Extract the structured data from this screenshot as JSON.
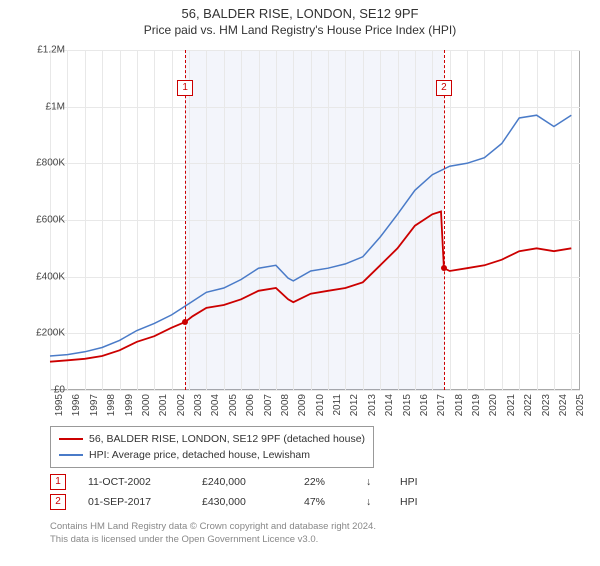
{
  "title": "56, BALDER RISE, LONDON, SE12 9PF",
  "subtitle": "Price paid vs. HM Land Registry's House Price Index (HPI)",
  "chart": {
    "type": "line",
    "background_color": "#ffffff",
    "grid_color": "#e8e8e8",
    "border_color": "#aaaaaa",
    "shade_color": "rgba(100,130,200,0.08)",
    "ylim": [
      0,
      1200000
    ],
    "ytick_step": 200000,
    "yticks": [
      "£0",
      "£200K",
      "£400K",
      "£600K",
      "£800K",
      "£1M",
      "£1.2M"
    ],
    "xlim": [
      1995,
      2025.5
    ],
    "xticks": [
      1995,
      1996,
      1997,
      1998,
      1999,
      2000,
      2001,
      2002,
      2003,
      2004,
      2005,
      2006,
      2007,
      2008,
      2009,
      2010,
      2011,
      2012,
      2013,
      2014,
      2015,
      2016,
      2017,
      2018,
      2019,
      2020,
      2021,
      2022,
      2023,
      2024,
      2025
    ],
    "series": [
      {
        "id": "price_paid",
        "label": "56, BALDER RISE, LONDON, SE12 9PF (detached house)",
        "color": "#cc0000",
        "width": 1.8,
        "points": [
          [
            1995,
            100000
          ],
          [
            1996,
            105000
          ],
          [
            1997,
            110000
          ],
          [
            1998,
            120000
          ],
          [
            1999,
            140000
          ],
          [
            2000,
            170000
          ],
          [
            2001,
            190000
          ],
          [
            2002,
            220000
          ],
          [
            2002.78,
            240000
          ],
          [
            2003.2,
            260000
          ],
          [
            2004,
            290000
          ],
          [
            2005,
            300000
          ],
          [
            2006,
            320000
          ],
          [
            2007,
            350000
          ],
          [
            2008,
            360000
          ],
          [
            2008.7,
            320000
          ],
          [
            2009,
            310000
          ],
          [
            2010,
            340000
          ],
          [
            2011,
            350000
          ],
          [
            2012,
            360000
          ],
          [
            2013,
            380000
          ],
          [
            2014,
            440000
          ],
          [
            2015,
            500000
          ],
          [
            2016,
            580000
          ],
          [
            2017,
            620000
          ],
          [
            2017.5,
            630000
          ],
          [
            2017.67,
            430000
          ],
          [
            2018,
            420000
          ],
          [
            2019,
            430000
          ],
          [
            2020,
            440000
          ],
          [
            2021,
            460000
          ],
          [
            2022,
            490000
          ],
          [
            2023,
            500000
          ],
          [
            2024,
            490000
          ],
          [
            2025,
            500000
          ]
        ]
      },
      {
        "id": "hpi",
        "label": "HPI: Average price, detached house, Lewisham",
        "color": "#4a7bc8",
        "width": 1.5,
        "points": [
          [
            1995,
            120000
          ],
          [
            1996,
            125000
          ],
          [
            1997,
            135000
          ],
          [
            1998,
            150000
          ],
          [
            1999,
            175000
          ],
          [
            2000,
            210000
          ],
          [
            2001,
            235000
          ],
          [
            2002,
            265000
          ],
          [
            2003,
            305000
          ],
          [
            2004,
            345000
          ],
          [
            2005,
            360000
          ],
          [
            2006,
            390000
          ],
          [
            2007,
            430000
          ],
          [
            2008,
            440000
          ],
          [
            2008.7,
            395000
          ],
          [
            2009,
            385000
          ],
          [
            2010,
            420000
          ],
          [
            2011,
            430000
          ],
          [
            2012,
            445000
          ],
          [
            2013,
            470000
          ],
          [
            2014,
            540000
          ],
          [
            2015,
            620000
          ],
          [
            2016,
            705000
          ],
          [
            2017,
            760000
          ],
          [
            2018,
            790000
          ],
          [
            2019,
            800000
          ],
          [
            2020,
            820000
          ],
          [
            2021,
            870000
          ],
          [
            2022,
            960000
          ],
          [
            2023,
            970000
          ],
          [
            2024,
            930000
          ],
          [
            2025,
            970000
          ]
        ]
      }
    ],
    "sale_markers": [
      {
        "n": "1",
        "year": 2002.78,
        "price": 240000,
        "label_y": 90000
      },
      {
        "n": "2",
        "year": 2017.67,
        "price": 430000,
        "label_y": 90000
      }
    ],
    "shade_range": [
      2002.78,
      2017.67
    ],
    "sale_dot_color": "#cc0000"
  },
  "legend": {
    "items": [
      {
        "color": "#cc0000",
        "label": "56, BALDER RISE, LONDON, SE12 9PF (detached house)"
      },
      {
        "color": "#4a7bc8",
        "label": "HPI: Average price, detached house, Lewisham"
      }
    ]
  },
  "sales": [
    {
      "n": "1",
      "date": "11-OCT-2002",
      "price": "£240,000",
      "pct": "22%",
      "arrow": "↓",
      "hpi": "HPI"
    },
    {
      "n": "2",
      "date": "01-SEP-2017",
      "price": "£430,000",
      "pct": "47%",
      "arrow": "↓",
      "hpi": "HPI"
    }
  ],
  "footnote": {
    "line1": "Contains HM Land Registry data © Crown copyright and database right 2024.",
    "line2": "This data is licensed under the Open Government Licence v3.0."
  }
}
